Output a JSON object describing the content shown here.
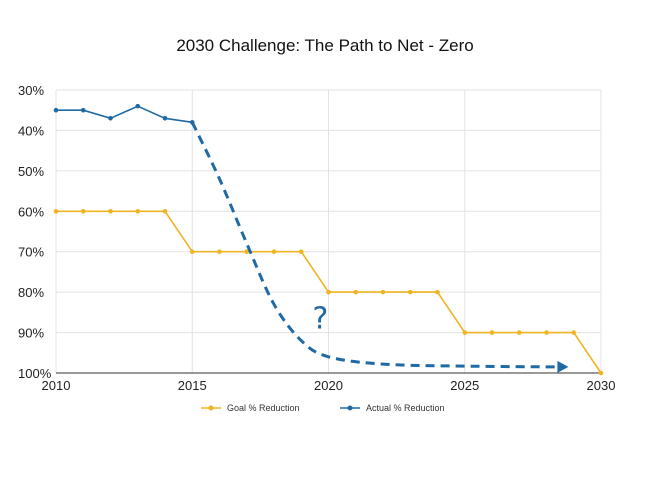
{
  "chart_data": {
    "type": "line",
    "title": "2030 Challenge: The Path to Net - Zero",
    "xlabel": "",
    "ylabel": "",
    "xlim": [
      2010,
      2030
    ],
    "ylim": [
      30,
      100
    ],
    "y_inverted": true,
    "x_ticks": [
      2010,
      2015,
      2020,
      2025,
      2030
    ],
    "y_ticks": [
      30,
      40,
      50,
      60,
      70,
      80,
      90,
      100
    ],
    "y_tick_labels": [
      "30%",
      "40%",
      "50%",
      "60%",
      "70%",
      "80%",
      "90%",
      "100%"
    ],
    "grid": true,
    "legend_position": "bottom",
    "series": [
      {
        "name": "Goal % Reduction",
        "color": "#f0b323",
        "style": "step",
        "x": [
          2010,
          2011,
          2012,
          2013,
          2014,
          2015,
          2016,
          2017,
          2018,
          2019,
          2020,
          2021,
          2022,
          2023,
          2024,
          2025,
          2026,
          2027,
          2028,
          2029,
          2030
        ],
        "y": [
          60,
          60,
          60,
          60,
          60,
          70,
          70,
          70,
          70,
          70,
          80,
          80,
          80,
          80,
          80,
          90,
          90,
          90,
          90,
          90,
          100
        ]
      },
      {
        "name": "Actual % Reduction",
        "color": "#1f6aa5",
        "style": "line",
        "x": [
          2010,
          2011,
          2012,
          2013,
          2014,
          2015
        ],
        "y": [
          35,
          35,
          37,
          34,
          37,
          38
        ]
      }
    ],
    "projection": {
      "color": "#1f6aa5",
      "dashed": true,
      "arrow": true,
      "x": [
        2015,
        2016,
        2017,
        2018,
        2019,
        2020,
        2022,
        2025,
        2028.4
      ],
      "y": [
        38,
        52,
        68,
        83,
        92,
        96,
        97.8,
        98.3,
        98.5
      ],
      "annotation": "?",
      "annotation_x": 2019.7,
      "annotation_y": 89
    }
  }
}
